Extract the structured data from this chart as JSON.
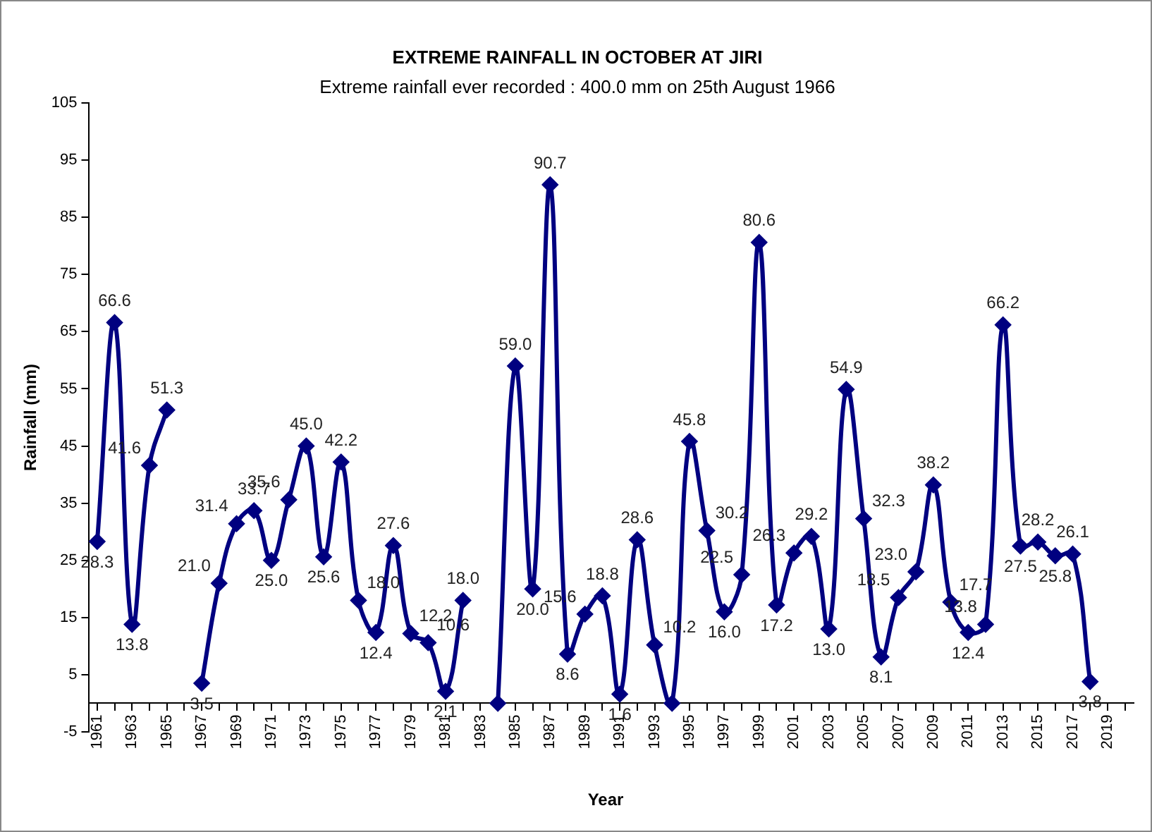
{
  "chart_data": {
    "type": "line",
    "title": "EXTREME RAINFALL IN OCTOBER AT JIRI",
    "subtitle": "Extreme rainfall ever recorded : 400.0 mm on 25th August 1966",
    "xlabel": "Year",
    "ylabel": "Rainfall (mm)",
    "categories": [
      "1961",
      null,
      "1963",
      null,
      "1965",
      null,
      "1967",
      null,
      "1969",
      null,
      "1971",
      null,
      "1973",
      null,
      "1975",
      null,
      "1977",
      null,
      "1979",
      null,
      "1981",
      null,
      "1983",
      null,
      "1985",
      null,
      "1987",
      null,
      "1989",
      null,
      "1991",
      null,
      "1993",
      null,
      "1995",
      null,
      "1997",
      null,
      "1999",
      null,
      "2001",
      null,
      "2003",
      null,
      "2005",
      null,
      "2007",
      null,
      "2009",
      null,
      "2011",
      null,
      "2013",
      null,
      "2015",
      null,
      "2017",
      null,
      "2019",
      null
    ],
    "values": [
      28.3,
      66.6,
      13.8,
      41.6,
      51.3,
      null,
      3.5,
      21.0,
      31.4,
      33.7,
      25.0,
      35.6,
      45.0,
      25.6,
      42.2,
      18.0,
      12.4,
      27.6,
      12.2,
      10.6,
      2.1,
      18.0,
      null,
      0,
      59.0,
      20.0,
      90.7,
      8.6,
      15.6,
      18.8,
      1.6,
      28.6,
      10.2,
      0,
      45.8,
      30.2,
      16.0,
      22.5,
      80.6,
      17.2,
      26.3,
      29.2,
      13.0,
      54.9,
      32.3,
      8.1,
      18.5,
      23.0,
      38.2,
      17.7,
      12.4,
      13.8,
      66.2,
      27.5,
      28.2,
      25.8,
      26.1,
      3.8,
      null,
      null
    ],
    "value_labels": [
      "28.3",
      "66.6",
      "13.8",
      "41.6",
      "51.3",
      null,
      "3.5",
      "21.0",
      "31.4",
      "33.7",
      "25.0",
      "35.6",
      "45.0",
      "25.6",
      "42.2",
      "18.0",
      "12.4",
      "27.6",
      "12.2",
      "10.6",
      "2.1",
      "18.0",
      null,
      null,
      "59.0",
      "20.0",
      "90.7",
      "8.6",
      "15.6",
      "18.8",
      "1.6",
      "28.6",
      "10.2",
      null,
      "45.8",
      "30.2",
      "16.0",
      "22.5",
      "80.6",
      "17.2",
      "26.3",
      "29.2",
      "13.0",
      "54.9",
      "32.3",
      "8.1",
      "18.5",
      "23.0",
      "38.2",
      "17.7",
      "12.4",
      "13.8",
      "66.2",
      "27.5",
      "28.2",
      "25.8",
      "26.1",
      "3.8",
      null,
      null
    ],
    "color": "#000080",
    "marker": "diamond",
    "ylim": [
      -5,
      105
    ],
    "yticks": [
      -5,
      5,
      15,
      25,
      35,
      45,
      55,
      65,
      75,
      85,
      95,
      105
    ],
    "grid": false,
    "legend": false
  }
}
